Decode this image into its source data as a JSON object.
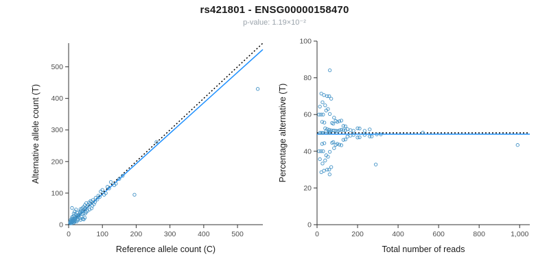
{
  "header": {
    "title": "rs421801 - ENSG00000158470",
    "subtitle": "p-value: 1.19×10⁻²"
  },
  "colors": {
    "point": "#4292C6",
    "fit_line": "#1E90FF",
    "identity_line": "#000000",
    "axis": "#333333",
    "tick_label": "#4d4d4d",
    "axis_label": "#1a1a1a"
  },
  "chart_data": [
    {
      "type": "scatter",
      "name": "allele-count-scatter",
      "xlabel": "Reference allele count (C)",
      "ylabel": "Alternative allele count (T)",
      "xlim": [
        0,
        575
      ],
      "ylim": [
        0,
        575
      ],
      "xticks": [
        0,
        100,
        200,
        300,
        400,
        500
      ],
      "xtick_labels": [
        "0",
        "100",
        "200",
        "300",
        "400",
        "500"
      ],
      "yticks": [
        0,
        100,
        200,
        300,
        400,
        500
      ],
      "ytick_labels": [
        "0",
        "100",
        "200",
        "300",
        "400",
        "500"
      ],
      "grid": false,
      "legend": "none",
      "points": [
        [
          4,
          6
        ],
        [
          6,
          4
        ],
        [
          5,
          9
        ],
        [
          9,
          5
        ],
        [
          7,
          7
        ],
        [
          8,
          12
        ],
        [
          12,
          8
        ],
        [
          10,
          10
        ],
        [
          6,
          15
        ],
        [
          15,
          6
        ],
        [
          11,
          14
        ],
        [
          14,
          11
        ],
        [
          9,
          18
        ],
        [
          18,
          9
        ],
        [
          13,
          13
        ],
        [
          12,
          18
        ],
        [
          18,
          12
        ],
        [
          15,
          15
        ],
        [
          10,
          24
        ],
        [
          24,
          10
        ],
        [
          16,
          20
        ],
        [
          20,
          16
        ],
        [
          14,
          26
        ],
        [
          26,
          14
        ],
        [
          19,
          21
        ],
        [
          17,
          28
        ],
        [
          28,
          17
        ],
        [
          22,
          23
        ],
        [
          15,
          35
        ],
        [
          35,
          15
        ],
        [
          24,
          26
        ],
        [
          20,
          34
        ],
        [
          34,
          20
        ],
        [
          27,
          27
        ],
        [
          18,
          42
        ],
        [
          42,
          18
        ],
        [
          29,
          31
        ],
        [
          25,
          38
        ],
        [
          38,
          25
        ],
        [
          31,
          32
        ],
        [
          22,
          48
        ],
        [
          48,
          22
        ],
        [
          34,
          36
        ],
        [
          10,
          53
        ],
        [
          45,
          17
        ],
        [
          30,
          30
        ],
        [
          33,
          41
        ],
        [
          41,
          33
        ],
        [
          36,
          44
        ],
        [
          44,
          36
        ],
        [
          39,
          41
        ],
        [
          35,
          49
        ],
        [
          49,
          35
        ],
        [
          42,
          44
        ],
        [
          40,
          52
        ],
        [
          52,
          40
        ],
        [
          46,
          48
        ],
        [
          44,
          56
        ],
        [
          56,
          44
        ],
        [
          50,
          52
        ],
        [
          48,
          62
        ],
        [
          62,
          48
        ],
        [
          54,
          57
        ],
        [
          52,
          68
        ],
        [
          68,
          52
        ],
        [
          58,
          62
        ],
        [
          60,
          70
        ],
        [
          70,
          60
        ],
        [
          63,
          67
        ],
        [
          65,
          75
        ],
        [
          75,
          65
        ],
        [
          68,
          72
        ],
        [
          72,
          78
        ],
        [
          78,
          72
        ],
        [
          80,
          85
        ],
        [
          85,
          80
        ],
        [
          88,
          92
        ],
        [
          92,
          88
        ],
        [
          95,
          105
        ],
        [
          105,
          95
        ],
        [
          100,
          110
        ],
        [
          110,
          100
        ],
        [
          115,
          120
        ],
        [
          120,
          115
        ],
        [
          125,
          135
        ],
        [
          135,
          125
        ],
        [
          140,
          130
        ],
        [
          150,
          145
        ],
        [
          160,
          155
        ],
        [
          195,
          95
        ],
        [
          260,
          262
        ],
        [
          560,
          430
        ]
      ],
      "lines": [
        {
          "name": "fit-line",
          "style": "solid",
          "color_key": "fit_line",
          "slope": 0.965,
          "intercept": 0
        },
        {
          "name": "identity-line",
          "style": "dotted",
          "color_key": "identity_line",
          "slope": 1.0,
          "intercept": 0
        }
      ]
    },
    {
      "type": "scatter",
      "name": "percentage-reads-scatter",
      "xlabel": "Total number of reads",
      "ylabel": "Percentage alternative (T)",
      "xlim": [
        0,
        1050
      ],
      "ylim": [
        0,
        100
      ],
      "xticks": [
        0,
        200,
        400,
        600,
        800,
        1000
      ],
      "xtick_labels": [
        "0",
        "200",
        "400",
        "600",
        "800",
        "1,000"
      ],
      "yticks": [
        0,
        20,
        40,
        60,
        80,
        100
      ],
      "ytick_labels": [
        "0",
        "20",
        "40",
        "60",
        "80",
        "100"
      ],
      "grid": false,
      "legend": "none",
      "points": [
        [
          10,
          60
        ],
        [
          10,
          40
        ],
        [
          14,
          64.3
        ],
        [
          14,
          35.7
        ],
        [
          14,
          50
        ],
        [
          20,
          60
        ],
        [
          20,
          40
        ],
        [
          20,
          50
        ],
        [
          21,
          71.4
        ],
        [
          21,
          28.6
        ],
        [
          25,
          56
        ],
        [
          25,
          44
        ],
        [
          27,
          66.7
        ],
        [
          27,
          33.3
        ],
        [
          26,
          50
        ],
        [
          30,
          60
        ],
        [
          30,
          40
        ],
        [
          30,
          50
        ],
        [
          34,
          70.6
        ],
        [
          34,
          29.4
        ],
        [
          36,
          55.6
        ],
        [
          36,
          44.4
        ],
        [
          40,
          65
        ],
        [
          40,
          35
        ],
        [
          40,
          52.5
        ],
        [
          45,
          62.2
        ],
        [
          45,
          37.8
        ],
        [
          45,
          51.1
        ],
        [
          50,
          70
        ],
        [
          50,
          30
        ],
        [
          50,
          52
        ],
        [
          54,
          63
        ],
        [
          54,
          37
        ],
        [
          54,
          50
        ],
        [
          60,
          70
        ],
        [
          60,
          30
        ],
        [
          60,
          51.7
        ],
        [
          63,
          60.3
        ],
        [
          63,
          39.7
        ],
        [
          63,
          50.8
        ],
        [
          70,
          68.6
        ],
        [
          70,
          31.4
        ],
        [
          70,
          51.4
        ],
        [
          63,
          84.1
        ],
        [
          62,
          27.4
        ],
        [
          60,
          50
        ],
        [
          74,
          55.4
        ],
        [
          74,
          44.6
        ],
        [
          80,
          55
        ],
        [
          80,
          45
        ],
        [
          80,
          51.3
        ],
        [
          84,
          58.3
        ],
        [
          84,
          41.7
        ],
        [
          86,
          51.2
        ],
        [
          92,
          56.5
        ],
        [
          92,
          43.5
        ],
        [
          94,
          51.1
        ],
        [
          100,
          56
        ],
        [
          100,
          44
        ],
        [
          102,
          51
        ],
        [
          110,
          56.4
        ],
        [
          110,
          43.6
        ],
        [
          111,
          51.4
        ],
        [
          120,
          56.7
        ],
        [
          120,
          43.3
        ],
        [
          120,
          51.7
        ],
        [
          130,
          53.8
        ],
        [
          130,
          46.2
        ],
        [
          130,
          51.5
        ],
        [
          140,
          53.6
        ],
        [
          140,
          46.4
        ],
        [
          140,
          51.4
        ],
        [
          150,
          52
        ],
        [
          150,
          48
        ],
        [
          165,
          51.5
        ],
        [
          165,
          48.5
        ],
        [
          180,
          51.1
        ],
        [
          180,
          48.9
        ],
        [
          200,
          52.5
        ],
        [
          200,
          47.5
        ],
        [
          210,
          52.4
        ],
        [
          210,
          47.6
        ],
        [
          235,
          51.1
        ],
        [
          235,
          48.9
        ],
        [
          260,
          51.9
        ],
        [
          260,
          48.1
        ],
        [
          270,
          48.1
        ],
        [
          295,
          49.2
        ],
        [
          315,
          49.2
        ],
        [
          290,
          32.8
        ],
        [
          522,
          50.2
        ],
        [
          990,
          43.4
        ]
      ],
      "lines": [
        {
          "name": "fit-line",
          "style": "solid",
          "color_key": "fit_line",
          "slope": 0,
          "intercept": 49.3
        },
        {
          "name": "expected-line",
          "style": "dotted",
          "color_key": "identity_line",
          "slope": 0,
          "intercept": 50
        }
      ]
    }
  ]
}
